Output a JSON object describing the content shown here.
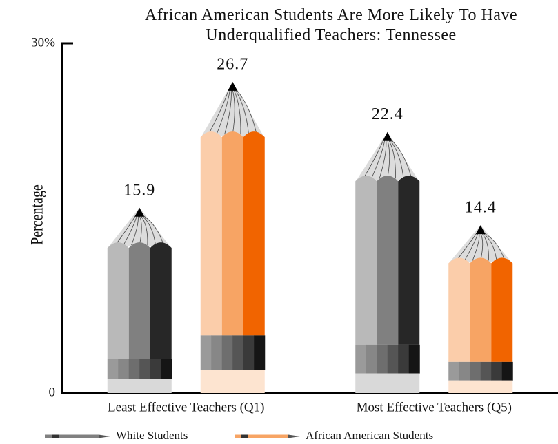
{
  "chart_data": {
    "type": "pencil-bar",
    "title": "African American Students Are More Likely To Have Underqualified Teachers:  Tennessee",
    "y_label": "Percentage",
    "categories": [
      "Least Effective Teachers (Q1)",
      "Most Effective Teachers (Q5)"
    ],
    "series": [
      {
        "name": "White Students",
        "color": "#808080",
        "values": [
          15.9,
          22.4
        ]
      },
      {
        "name": "African American Students",
        "color": "#f7a464",
        "values": [
          26.7,
          14.4
        ]
      }
    ],
    "ylim": [
      0,
      30
    ],
    "yticks": [
      0,
      {
        "value": 30,
        "label": "30%"
      }
    ],
    "legend": "bottom"
  }
}
